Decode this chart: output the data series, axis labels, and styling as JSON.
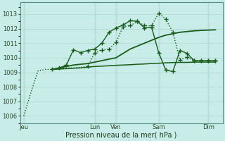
{
  "xlabel": "Pression niveau de la mer( hPa )",
  "bg_color": "#c8ece8",
  "grid_major_color": "#b8dcd8",
  "grid_minor_color": "#d4eeea",
  "line_color": "#1a5c1a",
  "ylim": [
    1005.5,
    1013.8
  ],
  "day_labels": [
    "Jeu",
    "Lun",
    "Ven",
    "Sam",
    "Dim"
  ],
  "day_positions": [
    0,
    10,
    13,
    19,
    26
  ],
  "xlim": [
    -0.5,
    28
  ],
  "series1_x": [
    0,
    1,
    2,
    3,
    4,
    5,
    6,
    7,
    8,
    9,
    10,
    11,
    12,
    13,
    14,
    15,
    16,
    17,
    18,
    19,
    20,
    21,
    22,
    23,
    24,
    25,
    26,
    27
  ],
  "series1_y": [
    1006.0,
    1007.6,
    1009.1,
    1009.2,
    1009.2,
    1009.25,
    1009.3,
    1009.3,
    1009.35,
    1009.4,
    1010.35,
    1010.55,
    1010.6,
    1011.05,
    1012.15,
    1012.2,
    1012.5,
    1012.2,
    1012.2,
    1013.05,
    1012.65,
    1011.75,
    1009.85,
    1010.05,
    1009.8,
    1009.8,
    1009.8,
    1009.8
  ],
  "series2_x": [
    4,
    5,
    6,
    7,
    8,
    9,
    10,
    11,
    12,
    13,
    14,
    15,
    16,
    17,
    18,
    19,
    20,
    21,
    22,
    23,
    24,
    25,
    26,
    27
  ],
  "series2_y": [
    1009.2,
    1009.3,
    1009.4,
    1009.5,
    1009.55,
    1009.6,
    1009.7,
    1009.8,
    1009.9,
    1010.0,
    1010.3,
    1010.6,
    1010.8,
    1011.0,
    1011.2,
    1011.4,
    1011.55,
    1011.65,
    1011.75,
    1011.8,
    1011.85,
    1011.88,
    1011.9,
    1011.92
  ],
  "series3_x": [
    4,
    5,
    6,
    7,
    8,
    9,
    10,
    11,
    12,
    13,
    14,
    15,
    16,
    17,
    18,
    19,
    20,
    21,
    22,
    23,
    24,
    25,
    26,
    27
  ],
  "series3_y": [
    1009.2,
    1009.22,
    1009.25,
    1009.28,
    1009.3,
    1009.35,
    1009.4,
    1009.42,
    1009.45,
    1009.48,
    1009.5,
    1009.52,
    1009.55,
    1009.57,
    1009.6,
    1009.62,
    1009.65,
    1009.67,
    1009.68,
    1009.68,
    1009.7,
    1009.7,
    1009.7,
    1009.7
  ],
  "series4_x": [
    4,
    5,
    6,
    7,
    8,
    9,
    10,
    11,
    12,
    13,
    14,
    15,
    16,
    17,
    18,
    19,
    20,
    21,
    22,
    23,
    24,
    25,
    26,
    27
  ],
  "series4_y": [
    1009.2,
    1009.3,
    1009.5,
    1010.55,
    1010.35,
    1010.5,
    1010.6,
    1011.0,
    1011.75,
    1012.05,
    1012.25,
    1012.55,
    1012.5,
    1012.05,
    1012.1,
    1010.35,
    1009.15,
    1009.05,
    1010.5,
    1010.3,
    1009.8,
    1009.8,
    1009.8,
    1009.8
  ]
}
